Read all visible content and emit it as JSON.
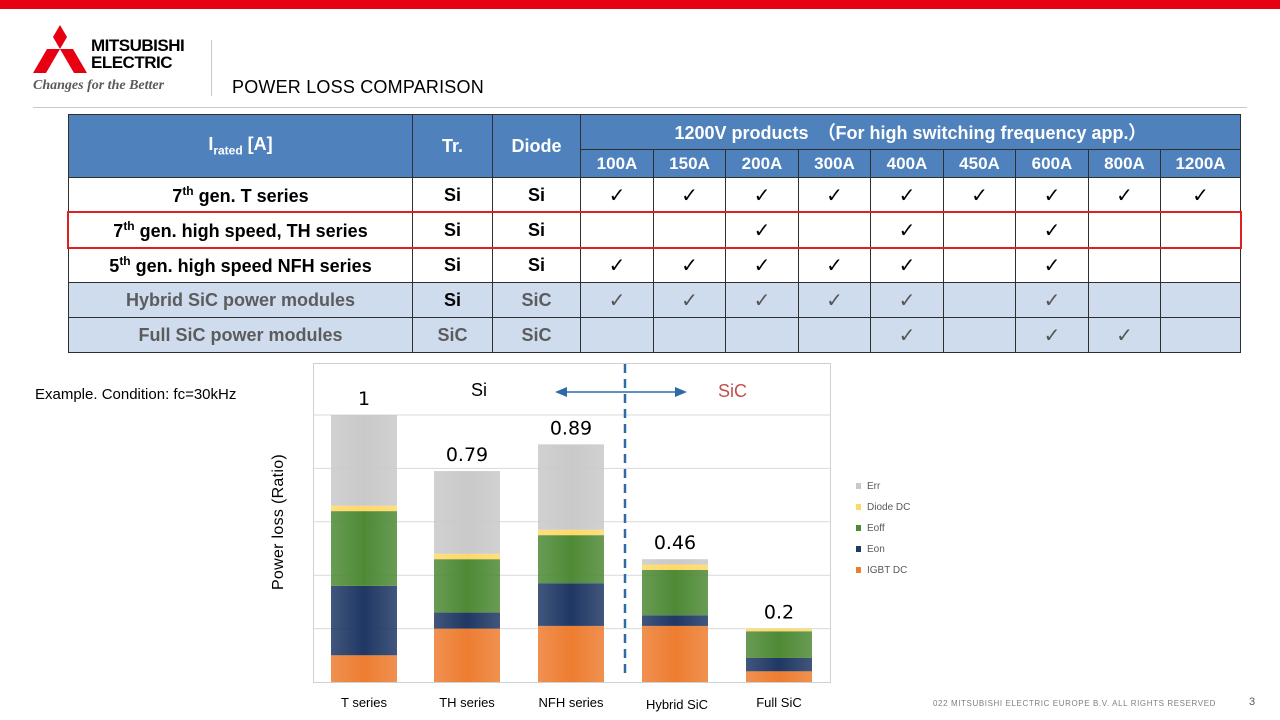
{
  "header": {
    "brand": "MITSUBISHI ELECTRIC",
    "brand_line1": "MITSUBISHI",
    "brand_line2": "ELECTRIC",
    "tagline": "Changes for the Better",
    "title": "POWER LOSS COMPARISON"
  },
  "colors": {
    "top_bar": "#e60012",
    "table_header": "#4f81bd",
    "table_row_blue": "#cfdcee",
    "highlight_border": "#e02020",
    "divider_line": "#2e6aa8",
    "arrow": "#2e6aa8",
    "sic_label": "#c0504d"
  },
  "table": {
    "rated_label": "I",
    "rated_sub": "rated",
    "rated_unit": " [A]",
    "tr_header": "Tr.",
    "diode_header": "Diode",
    "group_header": "1200V products　（For high switching frequency app.）",
    "amps": [
      "100A",
      "150A",
      "200A",
      "300A",
      "400A",
      "450A",
      "600A",
      "800A",
      "1200A"
    ],
    "check_mark": "✓",
    "rows": [
      {
        "num": "7",
        "sup": "th",
        "text": " gen. T series",
        "tr": "Si",
        "diode": "Si",
        "checks": [
          true,
          true,
          true,
          true,
          true,
          true,
          true,
          true,
          true
        ]
      },
      {
        "num": "7",
        "sup": "th",
        "text": " gen. high speed, TH series",
        "tr": "Si",
        "diode": "Si",
        "checks": [
          false,
          false,
          true,
          false,
          true,
          false,
          true,
          false,
          false
        ]
      },
      {
        "num": "5",
        "sup": "th",
        "text": " gen. high speed NFH series",
        "tr": "Si",
        "diode": "Si",
        "checks": [
          true,
          true,
          true,
          true,
          true,
          false,
          true,
          false,
          false
        ]
      },
      {
        "num": "",
        "sup": "",
        "text": "Hybrid SiC power modules",
        "tr": "Si",
        "diode": "SiC",
        "checks": [
          true,
          true,
          true,
          true,
          true,
          false,
          true,
          false,
          false
        ]
      },
      {
        "num": "",
        "sup": "",
        "text": "Full SiC power modules",
        "tr": "SiC",
        "diode": "SiC",
        "checks": [
          false,
          false,
          false,
          false,
          true,
          false,
          true,
          true,
          false
        ]
      }
    ]
  },
  "example_text": "Example.   Condition: fc=30kHz",
  "chart": {
    "ylabel": "Power loss (Ratio)",
    "si_label": "Si",
    "sic_label": "SiC"
  },
  "chart_data": {
    "type": "bar",
    "stacked": true,
    "categories": [
      "T series",
      "TH series",
      "NFH series",
      "Hybrid SiC",
      "Full SiC"
    ],
    "totals": [
      1,
      0.79,
      0.89,
      0.46,
      0.2
    ],
    "total_labels": [
      "1",
      "0.79",
      "0.89",
      "0.46",
      "0.2"
    ],
    "ylim": [
      0,
      1.2
    ],
    "grid": true,
    "legend_position": "right",
    "series": [
      {
        "name": "IGBT DC",
        "color": "#ed7d31",
        "values": [
          0.1,
          0.2,
          0.21,
          0.21,
          0.04
        ]
      },
      {
        "name": "Eon",
        "color": "#1f3864",
        "values": [
          0.26,
          0.06,
          0.16,
          0.04,
          0.05
        ]
      },
      {
        "name": "Eoff",
        "color": "#4e8a36",
        "values": [
          0.28,
          0.2,
          0.18,
          0.17,
          0.1
        ]
      },
      {
        "name": "Diode DC",
        "color": "#ffd966",
        "values": [
          0.02,
          0.02,
          0.02,
          0.02,
          0.01
        ]
      },
      {
        "name": "Err",
        "color": "#c9c9c9",
        "values": [
          0.34,
          0.31,
          0.32,
          0.02,
          0.0
        ]
      }
    ],
    "legend_order": [
      "Err",
      "Diode DC",
      "Eoff",
      "Eon",
      "IGBT DC"
    ]
  },
  "footer": {
    "copyright": "022  MITSUBISHI  ELECTRIC  EUROPE  B.V.  ALL  RIGHTS  RESERVED",
    "page_number": "3"
  }
}
